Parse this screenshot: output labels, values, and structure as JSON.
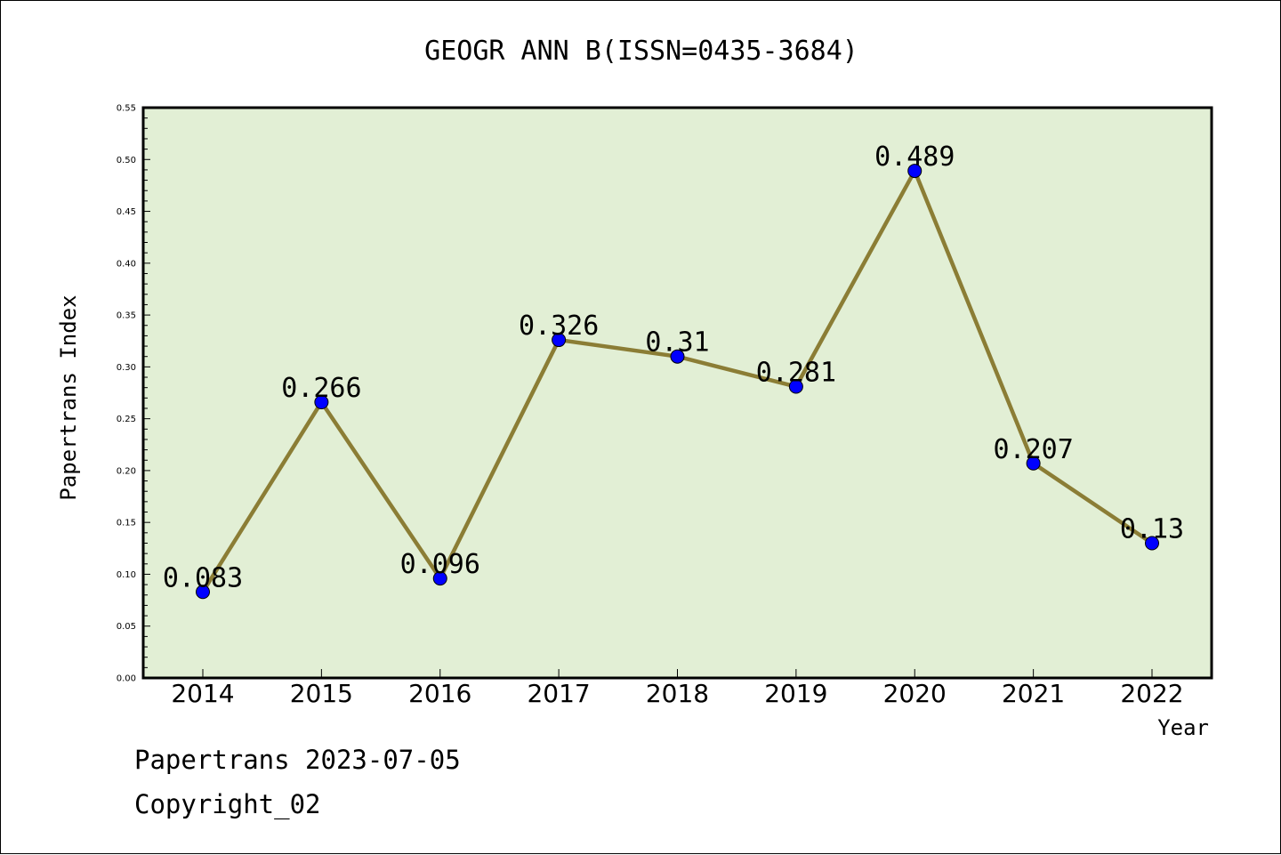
{
  "chart_data": {
    "type": "line",
    "title": "GEOGR ANN B(ISSN=0435-3684)",
    "xlabel": "Year",
    "ylabel": "Papertrans Index",
    "categories": [
      "2014",
      "2015",
      "2016",
      "2017",
      "2018",
      "2019",
      "2020",
      "2021",
      "2022"
    ],
    "series": [
      {
        "values": [
          0.083,
          0.266,
          0.096,
          0.326,
          0.31,
          0.281,
          0.489,
          0.207,
          0.13
        ]
      }
    ],
    "data_labels": [
      "0.083",
      "0.266",
      "0.096",
      "0.326",
      "0.31",
      "0.281",
      "0.489",
      "0.207",
      "0.13"
    ],
    "ylim": [
      0,
      0.55
    ],
    "yticks": [
      "0.00",
      "0.05",
      "0.10",
      "0.15",
      "0.20",
      "0.25",
      "0.30",
      "0.35",
      "0.40",
      "0.45",
      "0.50",
      "0.55"
    ],
    "grid": false,
    "colors": {
      "plot_background": "#e2efd5",
      "line": "#8b7d35",
      "marker": "#0000ff"
    }
  },
  "footer": {
    "line1": "Papertrans 2023-07-05",
    "line2": "Copyright_02"
  }
}
